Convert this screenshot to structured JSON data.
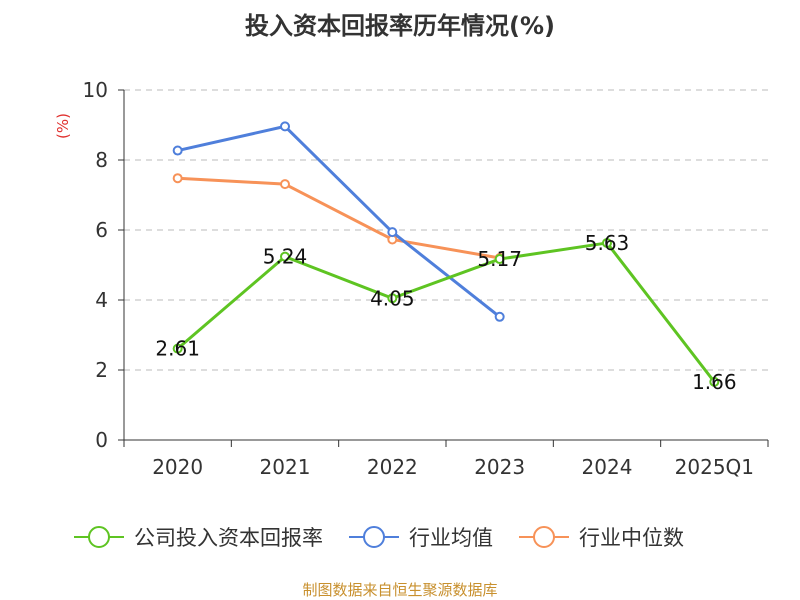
{
  "chart_data": {
    "type": "line",
    "title": "投入资本回报率历年情况(%)",
    "ylabel": "(%)",
    "xlabel": "",
    "categories": [
      "2020",
      "2021",
      "2022",
      "2023",
      "2024",
      "2025Q1"
    ],
    "ylim": [
      0,
      10
    ],
    "yticks": [
      0,
      2,
      4,
      6,
      8,
      10
    ],
    "grid": true,
    "legend_position": "bottom",
    "series": [
      {
        "name": "公司投入资本回报率",
        "color": "#5ec422",
        "values": [
          2.61,
          5.24,
          4.05,
          5.17,
          5.63,
          1.66
        ],
        "labels": [
          "2.61",
          "5.24",
          "4.05",
          "5.17",
          "5.63",
          "1.66"
        ],
        "show_labels": true
      },
      {
        "name": "行业均值",
        "color": "#4f7fdb",
        "values": [
          8.27,
          8.96,
          5.94,
          3.52,
          null,
          null
        ],
        "show_labels": false
      },
      {
        "name": "行业中位数",
        "color": "#f79258",
        "values": [
          7.48,
          7.31,
          5.73,
          5.2,
          null,
          null
        ],
        "show_labels": false
      }
    ]
  },
  "source": "制图数据来自恒生聚源数据库",
  "colors": {
    "unit": "#e0302e",
    "source": "#c8902e",
    "axis": "#333333",
    "grid": "#bbbbbb"
  }
}
